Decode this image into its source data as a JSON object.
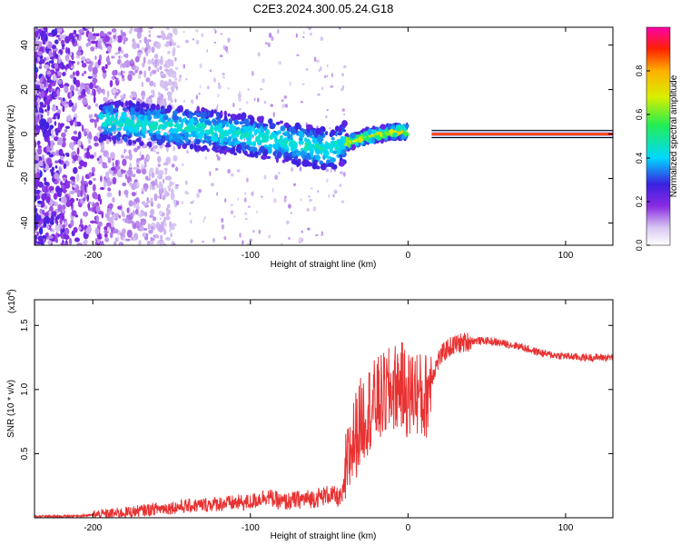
{
  "figure": {
    "title": "C2E3.2024.300.05.24.G18"
  },
  "chart_data": [
    {
      "type": "heatmap",
      "title": "C2E3.2024.300.05.24.G18",
      "xlabel": "Height of straight line (km)",
      "ylabel": "Frequency (Hz)",
      "xlim": [
        -237,
        130
      ],
      "ylim": [
        -50,
        48
      ],
      "x_ticks": [
        -200,
        -100,
        0,
        100
      ],
      "y_ticks": [
        -40,
        -20,
        0,
        20,
        40
      ],
      "colorbar": {
        "label": "Normalized spectral amplitude",
        "range": [
          0.0,
          1.0
        ],
        "ticks": [
          "0.0",
          "0.2",
          "0.4",
          "0.6",
          "0.8"
        ]
      },
      "signal_ridge": [
        {
          "x": -190,
          "f": 6
        },
        {
          "x": -160,
          "f": 4
        },
        {
          "x": -130,
          "f": 2
        },
        {
          "x": -100,
          "f": -1
        },
        {
          "x": -75,
          "f": -4
        },
        {
          "x": -50,
          "f": -7
        },
        {
          "x": -40,
          "f": -4
        },
        {
          "x": -25,
          "f": -1
        },
        {
          "x": -10,
          "f": 1
        },
        {
          "x": 0,
          "f": 1
        },
        {
          "x": 20,
          "f": 0
        },
        {
          "x": 60,
          "f": 0
        },
        {
          "x": 130,
          "f": 0
        }
      ],
      "grid": false
    },
    {
      "type": "line",
      "xlabel": "Height of straight line (km)",
      "ylabel": "SNR (10 * v/v)",
      "y_multiplier": "(x10",
      "y_multiplier_exp": "4",
      "y_multiplier_close": ")",
      "xlim": [
        -237,
        130
      ],
      "ylim": [
        0,
        1.7
      ],
      "x_ticks": [
        -200,
        -100,
        0,
        100
      ],
      "y_ticks": [
        0.5,
        1.0,
        1.5
      ],
      "y_tick_labels": [
        "0.5",
        "1.0",
        "1.5"
      ],
      "series": [
        {
          "color": "#e83232",
          "x": [
            -237,
            -220,
            -200,
            -180,
            -160,
            -140,
            -120,
            -100,
            -90,
            -80,
            -70,
            -60,
            -50,
            -42,
            -36,
            -30,
            -25,
            -20,
            -15,
            -10,
            -5,
            0,
            5,
            10,
            15,
            20,
            25,
            30,
            40,
            50,
            60,
            70,
            80,
            90,
            100,
            110,
            120,
            130
          ],
          "y": [
            0.01,
            0.01,
            0.02,
            0.04,
            0.07,
            0.09,
            0.11,
            0.12,
            0.17,
            0.12,
            0.14,
            0.15,
            0.18,
            0.15,
            0.55,
            0.75,
            0.85,
            0.9,
            0.95,
            1.0,
            1.05,
            0.95,
            1.0,
            0.9,
            1.1,
            1.25,
            1.32,
            1.35,
            1.38,
            1.38,
            1.36,
            1.34,
            1.3,
            1.27,
            1.26,
            1.25,
            1.25,
            1.25
          ]
        }
      ],
      "grid": false
    }
  ]
}
